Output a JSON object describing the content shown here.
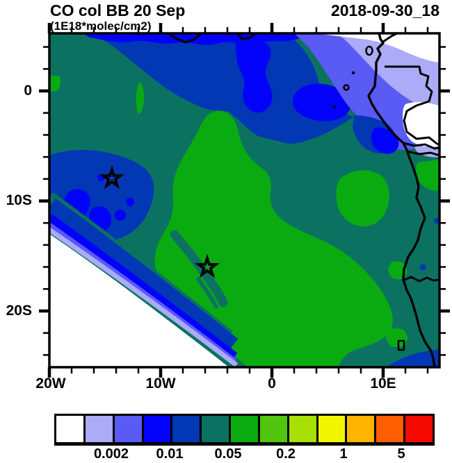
{
  "header": {
    "title_left": "CO col BB 20 Sep",
    "title_right": "2018-09-30_18",
    "subtitle": "(1E18*molec/cm2)"
  },
  "map": {
    "y_axis_labels": [
      "0",
      "10S",
      "20S"
    ],
    "x_axis_labels": [
      "20W",
      "10W",
      "0",
      "10E"
    ],
    "markers": [
      {
        "symbol": "star",
        "lon": -14.4,
        "lat": -8.0
      },
      {
        "symbol": "star",
        "lon": -5.8,
        "lat": -16.1
      }
    ]
  },
  "colorbar": {
    "colors": [
      "#FFFFFF",
      "#ABABF8",
      "#5A5AF5",
      "#0202FA",
      "#0238B4",
      "#0B7262",
      "#0AAB10",
      "#52C60E",
      "#A8E005",
      "#F2F500",
      "#FFB400",
      "#FF5E00",
      "#F50A00"
    ],
    "labels": [
      "0.002",
      "0.01",
      "0.05",
      "0.2",
      "1",
      "5"
    ]
  },
  "chart_data": {
    "type": "heatmap",
    "title": "CO col BB 20 Sep",
    "timestamp": "2018-09-30_18",
    "units": "1E18*molec/cm2",
    "lon_range_deg": [
      -20,
      15
    ],
    "lat_range_deg": [
      -25,
      5.2
    ],
    "contour_levels": [
      0.001,
      0.002,
      0.005,
      0.01,
      0.02,
      0.05,
      0.1,
      0.2,
      0.5,
      1,
      2,
      5
    ],
    "labeled_levels": [
      0.002,
      0.01,
      0.05,
      0.2,
      1,
      5
    ],
    "level_colors": [
      "#FFFFFF",
      "#ABABF8",
      "#5A5AF5",
      "#0202FA",
      "#0238B4",
      "#0B7262",
      "#0AAB10",
      "#52C60E",
      "#A8E005",
      "#F2F500",
      "#FFB400",
      "#FF5E00",
      "#F50A00"
    ],
    "max_band_on_map": "0.05-0.1",
    "markers": [
      {
        "symbol": "star",
        "lon": -14.4,
        "lat": -8.0
      },
      {
        "symbol": "star",
        "lon": -5.8,
        "lat": -16.1
      }
    ],
    "regions_summary": [
      "Large green region (0.05-0.1) covering the central and southeastern map toward the Angola/Namibia coast",
      "Teal region (0.02-0.05) over the northwest quadrant and along the right coastal land",
      "Dark blue band (0.01-0.02) across the north edge and a blob around the western star",
      "Bright blue to lavender (0.001-0.01) gradient in the far northeast over Gulf of Guinea land",
      "White (<0.001) in the southwest corner and northeast corner",
      "African coastline with country borders; islands Bioko, Principe, Sao Tome, Annobon"
    ]
  }
}
